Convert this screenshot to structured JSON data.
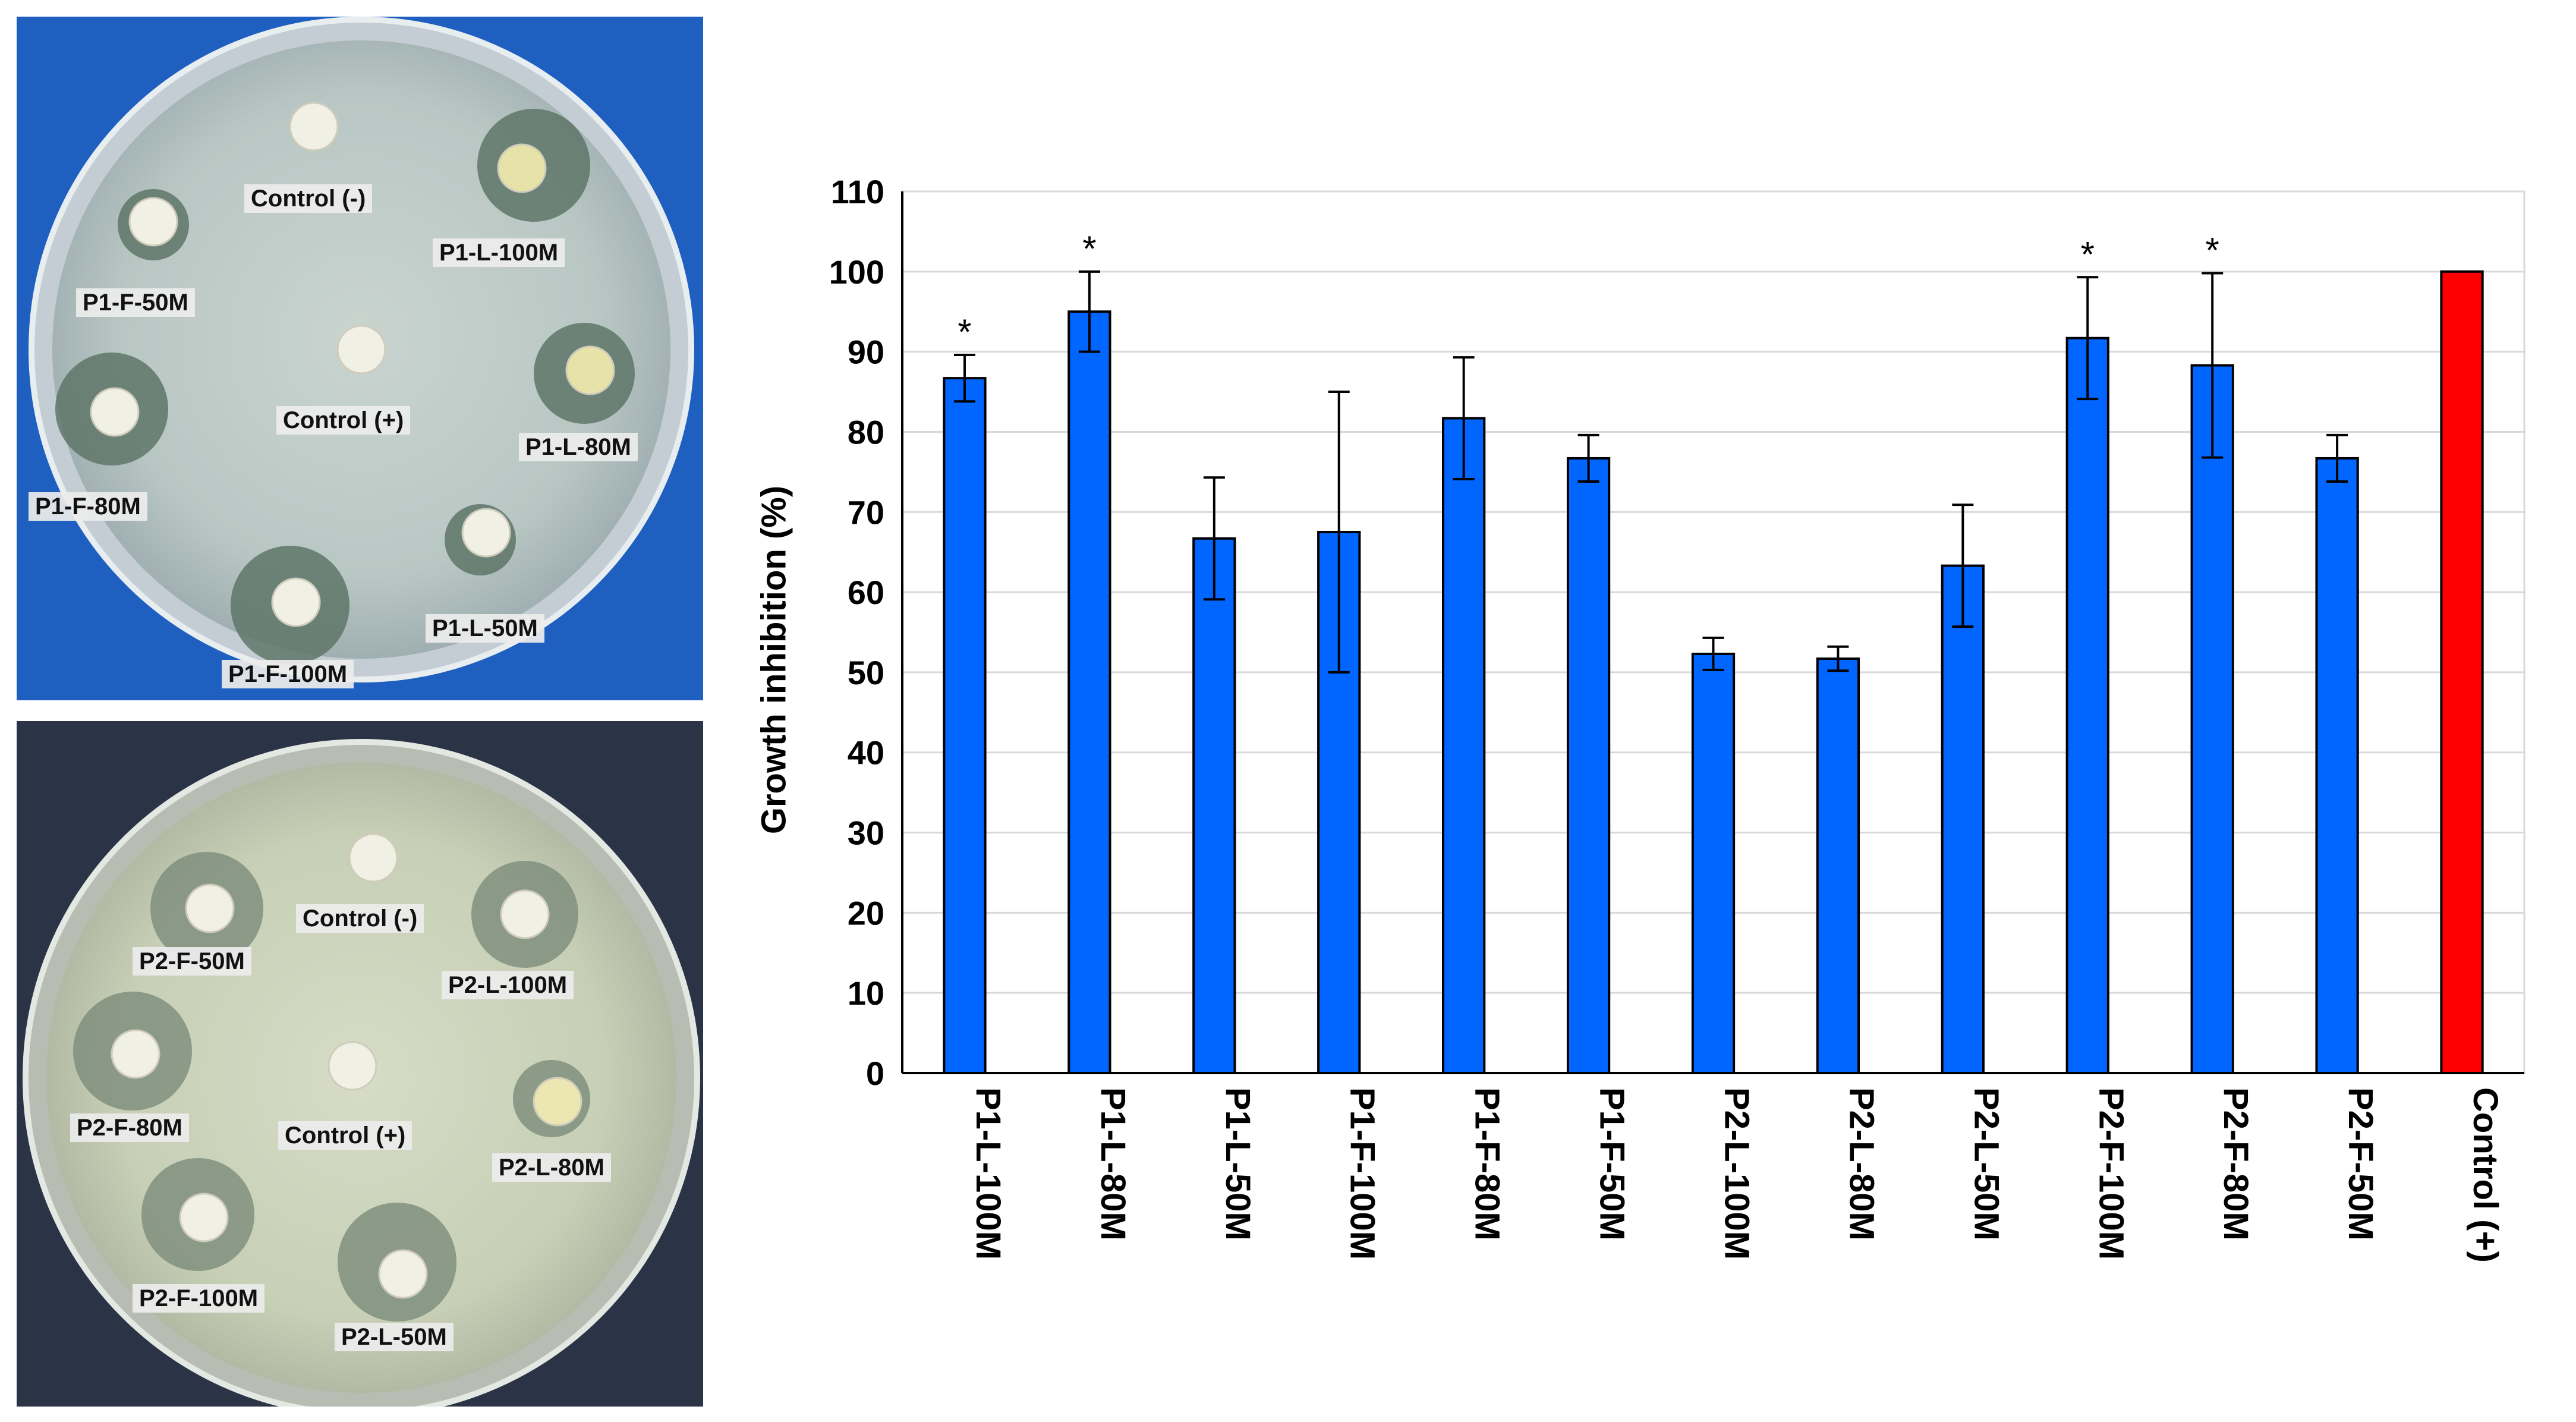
{
  "plates": [
    {
      "labels": [
        {
          "key": "c_neg",
          "text": "Control (-)"
        },
        {
          "key": "l100",
          "text": "P1-L-100M"
        },
        {
          "key": "f50",
          "text": "P1-F-50M"
        },
        {
          "key": "c_pos",
          "text": "Control (+)"
        },
        {
          "key": "l80",
          "text": "P1-L-80M"
        },
        {
          "key": "f80",
          "text": "P1-F-80M"
        },
        {
          "key": "l50",
          "text": "P1-L-50M"
        },
        {
          "key": "f100",
          "text": "P1-F-100M"
        }
      ]
    },
    {
      "labels": [
        {
          "key": "f50",
          "text": "P2-F-50M"
        },
        {
          "key": "c_neg",
          "text": "Control (-)"
        },
        {
          "key": "l100",
          "text": "P2-L-100M"
        },
        {
          "key": "f80",
          "text": "P2-F-80M"
        },
        {
          "key": "c_pos",
          "text": "Control (+)"
        },
        {
          "key": "l80",
          "text": "P2-L-80M"
        },
        {
          "key": "f100",
          "text": "P2-F-100M"
        },
        {
          "key": "l50",
          "text": "P2-L-50M"
        }
      ]
    }
  ],
  "chart_data": {
    "type": "bar",
    "ylabel": "Growth inhibition (%)",
    "ylim": [
      0,
      110
    ],
    "ytick_step": 10,
    "grid": true,
    "categories": [
      "P1-L-100M",
      "P1-L-80M",
      "P1-L-50M",
      "P1-F-100M",
      "P1-F-80M",
      "P1-F-50M",
      "P2-L-100M",
      "P2-L-80M",
      "P2-L-50M",
      "P2-F-100M",
      "P2-F-80M",
      "P2-F-50M",
      "Control (+)"
    ],
    "values": [
      86.7,
      95.0,
      66.7,
      67.5,
      81.7,
      76.7,
      52.3,
      51.7,
      63.3,
      91.7,
      88.3,
      76.7,
      100
    ],
    "errors": [
      2.9,
      5.0,
      7.6,
      17.5,
      7.6,
      2.9,
      2.0,
      1.5,
      7.6,
      7.6,
      11.5,
      2.9,
      0
    ],
    "significance": [
      "*",
      "*",
      "",
      "",
      "",
      "",
      "",
      "",
      "",
      "*",
      "*",
      "",
      ""
    ],
    "colors": {
      "default": "#0066ff",
      "control": "#ff0000"
    }
  }
}
